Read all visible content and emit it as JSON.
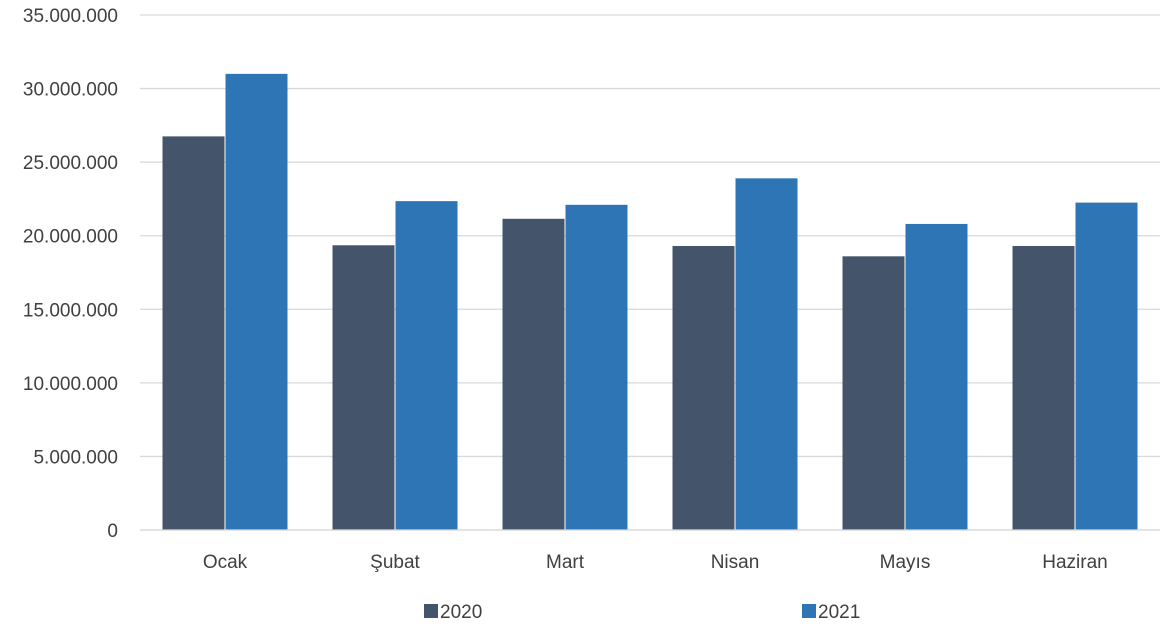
{
  "chart_data": {
    "type": "bar",
    "title": "",
    "xlabel": "",
    "ylabel": "",
    "categories": [
      "Ocak",
      "Şubat",
      "Mart",
      "Nisan",
      "Mayıs",
      "Haziran"
    ],
    "series": [
      {
        "name": "2020",
        "color": "#44546a",
        "values": [
          26750000,
          19350000,
          21150000,
          19300000,
          18600000,
          19300000
        ]
      },
      {
        "name": "2021",
        "color": "#2e75b6",
        "values": [
          31000000,
          22350000,
          22100000,
          23900000,
          20800000,
          22250000
        ]
      }
    ],
    "ylim": [
      0,
      35000000
    ],
    "yticks": [
      0,
      5000000,
      10000000,
      15000000,
      20000000,
      25000000,
      30000000,
      35000000
    ],
    "ytick_labels": [
      "0",
      "5.000.000",
      "10.000.000",
      "15.000.000",
      "20.000.000",
      "25.000.000",
      "30.000.000",
      "35.000.000"
    ],
    "grid": true,
    "gridline_color": "#d9d9d9",
    "legend": {
      "position": "bottom",
      "entries": [
        "2020",
        "2021"
      ]
    }
  }
}
